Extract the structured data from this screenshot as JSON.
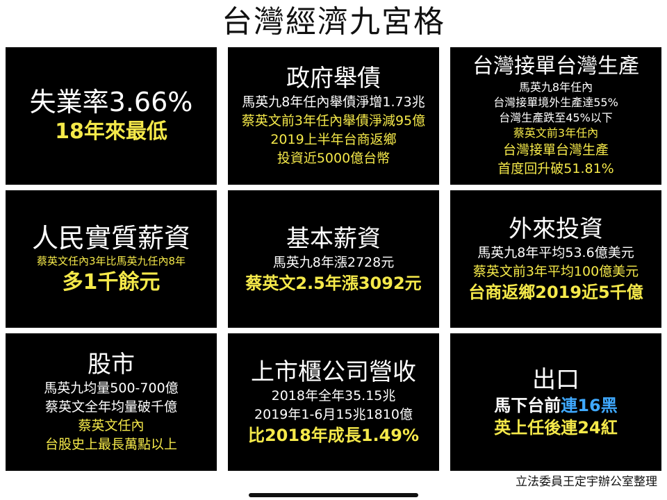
{
  "title": "台灣經濟九宮格",
  "cells": [
    {
      "id": "unemployment",
      "heading": "失業率3.66%",
      "lines": [
        {
          "text": "18年來最低",
          "color": "yellow"
        }
      ]
    },
    {
      "id": "government-debt",
      "heading": "政府舉債",
      "lines": [
        {
          "text": "馬英九8年任內舉債淨增1.73兆",
          "color": "white"
        },
        {
          "text": "蔡英文前3年任內舉債淨減95億",
          "color": "yellow"
        },
        {
          "text": "2019上半年台商返鄉",
          "color": "yellow"
        },
        {
          "text": "投資近5000億台幣",
          "color": "yellow"
        }
      ]
    },
    {
      "id": "orders-production",
      "heading": "台灣接單台灣生產",
      "lines": [
        {
          "text": "馬英九8年任內",
          "color": "white"
        },
        {
          "text": "台灣接單境外生產達55%",
          "color": "white"
        },
        {
          "text": "台灣生產跌至45%以下",
          "color": "white"
        },
        {
          "text": "蔡英文前3年任內",
          "color": "yellow"
        },
        {
          "text": "台灣接單台灣生產",
          "color": "yellow"
        },
        {
          "text": "首度回升破51.81%",
          "color": "yellow"
        }
      ]
    },
    {
      "id": "real-wages",
      "heading": "人民實質薪資",
      "lines": [
        {
          "text": "蔡英文任內3年比馬英九任內8年",
          "color": "yellow"
        },
        {
          "text": "多1千餘元",
          "color": "yellow"
        }
      ]
    },
    {
      "id": "basic-wage",
      "heading": "基本薪資",
      "lines": [
        {
          "text": "馬英九8年漲2728元",
          "color": "white"
        },
        {
          "text": "蔡英文2.5年漲3092元",
          "color": "yellow"
        }
      ]
    },
    {
      "id": "foreign-investment",
      "heading": "外來投資",
      "lines": [
        {
          "text": "馬英九8年平均53.6億美元",
          "color": "white"
        },
        {
          "text": "蔡英文前3年平均100億美元",
          "color": "yellow"
        },
        {
          "text": "台商返鄉2019近5千億",
          "color": "yellow"
        }
      ]
    },
    {
      "id": "stock-market",
      "heading": "股市",
      "lines": [
        {
          "text": "馬英九均量500-700億",
          "color": "white"
        },
        {
          "text": "蔡英文全年均量破千億",
          "color": "white"
        },
        {
          "text": "蔡英文任內",
          "color": "yellow"
        },
        {
          "text": "台股史上最長萬點以上",
          "color": "yellow"
        }
      ]
    },
    {
      "id": "listed-revenue",
      "heading": "上市櫃公司營收",
      "lines": [
        {
          "text": "2018年全年35.15兆",
          "color": "white"
        },
        {
          "text": "2019年1-6月15兆1810億",
          "color": "white"
        },
        {
          "text": "比2018年成長1.49%",
          "color": "yellow"
        }
      ]
    },
    {
      "id": "exports",
      "heading": "出口",
      "lines": [
        {
          "text_a": "馬下台前",
          "text_b": "連16黑",
          "color": "white",
          "color_b": "blue"
        },
        {
          "text": "英上任後連24紅",
          "color": "yellow"
        }
      ]
    }
  ],
  "footer": "立法委員王定宇辦公室整理",
  "colors": {
    "background": "#ffffff",
    "cell": "#000000",
    "highlight": "#f5e94a",
    "accent": "#3fa9ff"
  }
}
